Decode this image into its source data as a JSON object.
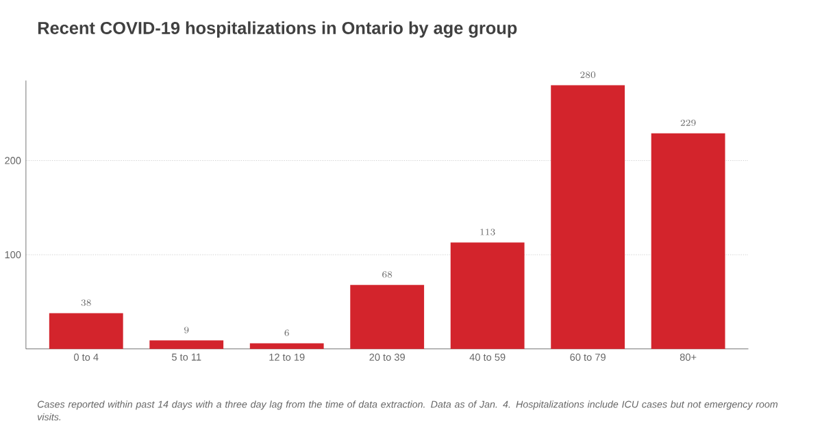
{
  "chart_data": {
    "type": "bar",
    "title": "Recent COVID-19 hospitalizations in Ontario by age group",
    "categories": [
      "0 to 4",
      "5 to 11",
      "12 to 19",
      "20 to 39",
      "40 to 59",
      "60 to 79",
      "80+"
    ],
    "values": [
      38,
      9,
      6,
      68,
      113,
      280,
      229
    ],
    "color": "#d3242c",
    "ylim": [
      0,
      285
    ],
    "yticks": [
      100,
      200
    ],
    "grid": "y",
    "data_labels": true,
    "annotations": [
      "Cases reported within past 14 days with a three day lag from the time of data extraction. Data as of Jan. 4. Hospitalizations include ICU cases but not emergency room visits."
    ]
  }
}
